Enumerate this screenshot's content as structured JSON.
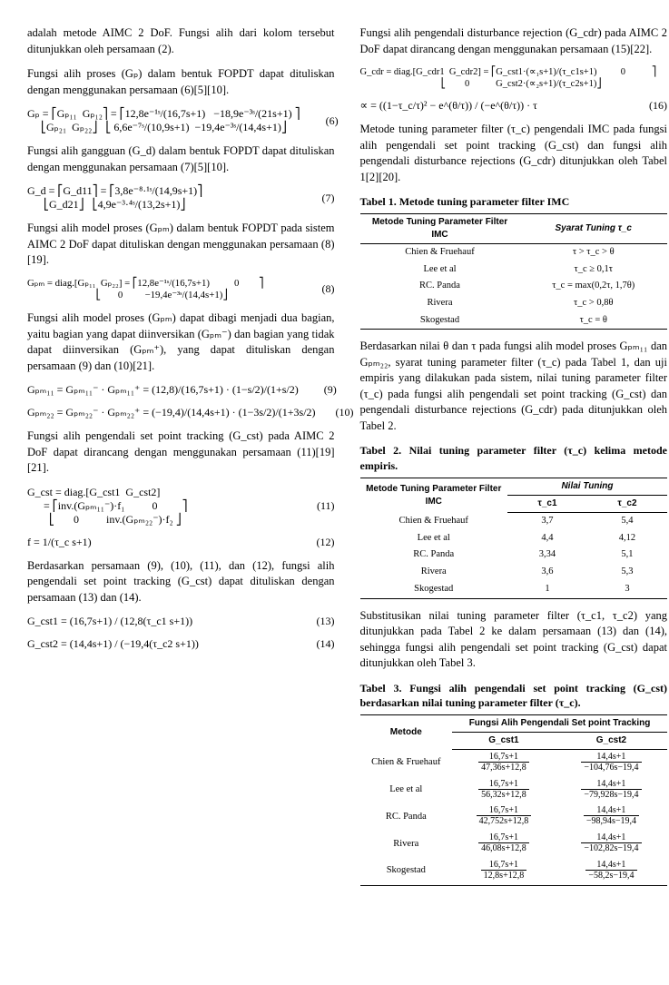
{
  "left": {
    "p1": "adalah metode AIMC 2 DoF. Fungsi alih dari kolom tersebut ditunjukkan oleh persamaan (2).",
    "p2": "Fungsi alih proses (Gₚ) dalam bentuk FOPDT dapat dituliskan dengan menggunakan persamaan (6)[5][10].",
    "eq6": "Gₚ = ⎡Gₚ₁₁  Gₚ₁₂⎤ = ⎡12,8e⁻¹ˢ/(16,7s+1)   −18,9e⁻³ˢ/(21s+1) ⎤\n     ⎣Gₚ₂₁  Gₚ₂₂⎦   ⎣ 6,6e⁻⁷ˢ/(10,9s+1)  −19,4e⁻³ˢ/(14,4s+1)⎦",
    "eq6n": "(6)",
    "p3": "Fungsi alih gangguan (G_d) dalam bentuk FOPDT dapat dituliskan dengan menggunakan persamaan (7)[5][10].",
    "eq7": "G_d = ⎡G_d11⎤ = ⎡3,8e⁻⁸·¹ˢ/(14,9s+1)⎤\n      ⎣G_d21⎦   ⎣4,9e⁻³·⁴ˢ/(13,2s+1)⎦",
    "eq7n": "(7)",
    "p4": "Fungsi alih model proses (Gₚₘ) dalam bentuk FOPDT pada sistem AIMC 2 DoF dapat dituliskan dengan menggunakan persamaan (8)[19].",
    "eq8": "Gₚₘ = diag.[Gₚ₁₁  Gₚ₂₂] = ⎡12,8e⁻¹ˢ/(16,7s+1)          0        ⎤\n                            ⎣       0         −19,4e⁻³ˢ/(14,4s+1)⎦",
    "eq8n": "(8)",
    "p5": "Fungsi alih model proses (Gₚₘ) dapat dibagi menjadi dua bagian, yaitu bagian yang dapat diinversikan (Gₚₘ⁻) dan bagian yang tidak dapat diinversikan (Gₚₘ⁺), yang dapat dituliskan dengan persamaan (9) dan (10)[21].",
    "eq9": "Gₚₘ₁₁ = Gₚₘ₁₁⁻ · Gₚₘ₁₁⁺ = (12,8)/(16,7s+1) · (1−s/2)/(1+s/2)",
    "eq9n": "(9)",
    "eq10": "Gₚₘ₂₂ = Gₚₘ₂₂⁻ · Gₚₘ₂₂⁺ = (−19,4)/(14,4s+1) · (1−3s/2)/(1+3s/2)",
    "eq10n": "(10)",
    "p6": "Fungsi alih pengendali set point tracking (G_cst) pada AIMC 2 DoF dapat dirancang dengan menggunakan persamaan (11)[19][21].",
    "eq11": "G_cst = diag.[G_cst1  G_cst2]\n      = ⎡inv.(Gₚₘ₁₁⁻)·f₁          0         ⎤\n        ⎣       0          inv.(Gₚₘ₂₂⁻)·f₂ ⎦",
    "eq11n": "(11)",
    "eq12": "f = 1/(τ_c s+1)",
    "eq12n": "(12)",
    "p7": "Berdasarkan persamaan (9), (10), (11), dan (12), fungsi alih pengendali set point tracking (G_cst) dapat dituliskan dengan persamaan (13) dan (14).",
    "eq13": "G_cst1 = (16,7s+1) / (12,8(τ_c1 s+1))",
    "eq13n": "(13)",
    "eq14": "G_cst2 = (14,4s+1) / (−19,4(τ_c2 s+1))",
    "eq14n": "(14)"
  },
  "right": {
    "p1": "Fungsi alih pengendali disturbance rejection (G_cdr) pada AIMC 2 DoF dapat dirancang dengan menggunakan persamaan (15)[22].",
    "eq15": "G_cdr = diag.[G_cdr1  G_cdr2] = ⎡G_cst1·(∝₁s+1)/(τ_c1s+1)          0           ⎤\n                                  ⎣        0           G_cst2·(∝₂s+1)/(τ_c2s+1)⎦",
    "eq15n": "(15)",
    "eq16": "∝ = ((1−τ_c/τ)² − e^(θ/τ)) / (−e^(θ/τ)) · τ",
    "eq16n": "(16)",
    "p2": "Metode tuning parameter filter (τ_c) pengendali IMC pada fungsi alih pengendali set point tracking (G_cst) dan fungsi alih pengendali disturbance rejections (G_cdr) ditunjukkan oleh Tabel 1[2][20].",
    "t1cap": "Tabel 1. Metode tuning parameter filter IMC",
    "t1": {
      "h1": "Metode Tuning Parameter Filter IMC",
      "h2": "Syarat Tuning τ_c",
      "rows": [
        [
          "Chien & Fruehauf",
          "τ > τ_c > θ"
        ],
        [
          "Lee et al",
          "τ_c ≥ 0,1τ"
        ],
        [
          "RC. Panda",
          "τ_c = max(0,2τ, 1,7θ)"
        ],
        [
          "Rivera",
          "τ_c > 0,8θ"
        ],
        [
          "Skogestad",
          "τ_c = θ"
        ]
      ]
    },
    "p3": "Berdasarkan nilai θ dan τ pada fungsi alih model proses Gₚₘ₁₁ dan Gₚₘ₂₂, syarat tuning parameter filter (τ_c) pada Tabel 1, dan uji empiris yang dilakukan pada sistem, nilai tuning parameter filter (τ_c) pada fungsi alih pengendali set point tracking (G_cst) dan pengendali disturbance rejections (G_cdr) pada ditunjukkan oleh Tabel 2.",
    "t2cap": "Tabel 2. Nilai tuning parameter filter (τ_c) kelima metode empiris.",
    "t2": {
      "h1": "Metode Tuning Parameter Filter IMC",
      "h2": "Nilai Tuning",
      "h2a": "τ_c1",
      "h2b": "τ_c2",
      "rows": [
        [
          "Chien & Fruehauf",
          "3,7",
          "5,4"
        ],
        [
          "Lee et al",
          "4,4",
          "4,12"
        ],
        [
          "RC. Panda",
          "3,34",
          "5,1"
        ],
        [
          "Rivera",
          "3,6",
          "5,3"
        ],
        [
          "Skogestad",
          "1",
          "3"
        ]
      ]
    },
    "p4": "Substitusikan nilai tuning parameter filter (τ_c1, τ_c2) yang ditunjukkan pada Tabel 2 ke dalam persamaan (13) dan (14), sehingga fungsi alih pengendali set point tracking (G_cst) dapat ditunjukkan oleh Tabel 3.",
    "t3cap": "Tabel 3. Fungsi alih pengendali set point tracking (G_cst) berdasarkan nilai tuning parameter filter (τ_c).",
    "t3": {
      "h0": "Metode",
      "h1": "Fungsi Alih Pengendali Set point Tracking",
      "h1a": "G_cst1",
      "h1b": "G_cst2",
      "rows": [
        [
          "Chien & Fruehauf",
          "16,7s+1",
          "47,36s+12,8",
          "14,4s+1",
          "−104,76s−19,4"
        ],
        [
          "Lee et al",
          "16,7s+1",
          "56,32s+12,8",
          "14,4s+1",
          "−79,928s−19,4"
        ],
        [
          "RC. Panda",
          "16,7s+1",
          "42,752s+12,8",
          "14,4s+1",
          "−98,94s−19,4"
        ],
        [
          "Rivera",
          "16,7s+1",
          "46,08s+12,8",
          "14,4s+1",
          "−102,82s−19,4"
        ],
        [
          "Skogestad",
          "16,7s+1",
          "12,8s+12,8",
          "14,4s+1",
          "−58,2s−19,4"
        ]
      ]
    }
  }
}
